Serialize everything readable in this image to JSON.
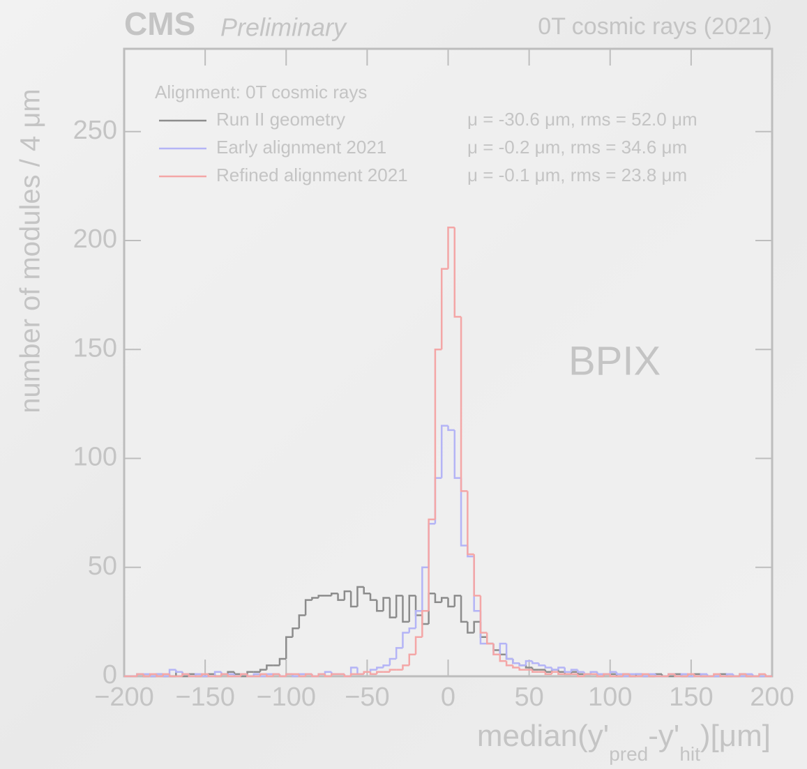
{
  "chart_data": {
    "type": "histogram",
    "experiment": "CMS",
    "status": "Preliminary",
    "run_label": "0T cosmic rays (2021)",
    "region_label": "BPIX",
    "legend_title": "Alignment: 0T cosmic rays",
    "ylabel": "number of modules / 4  μm",
    "xlabel_parts": [
      "median(y'",
      "pred",
      "-y'",
      "hit",
      ")[μm]"
    ],
    "xlim": [
      -200,
      200
    ],
    "ylim": [
      0,
      288
    ],
    "xticks": [
      {
        "value": -200,
        "label": "−200"
      },
      {
        "value": -150,
        "label": "−150"
      },
      {
        "value": -100,
        "label": "−100"
      },
      {
        "value": -50,
        "label": "−50"
      },
      0,
      50,
      100,
      150,
      200
    ],
    "yticks": [
      0,
      50,
      100,
      150,
      200,
      250
    ],
    "bins": [
      -200,
      -196,
      -192,
      -188,
      -184,
      -180,
      -176,
      -172,
      -168,
      -164,
      -160,
      -156,
      -152,
      -148,
      -144,
      -140,
      -136,
      -132,
      -128,
      -124,
      -120,
      -116,
      -112,
      -108,
      -104,
      -100,
      -96,
      -92,
      -88,
      -84,
      -80,
      -76,
      -72,
      -68,
      -64,
      -60,
      -56,
      -52,
      -48,
      -44,
      -40,
      -36,
      -32,
      -28,
      -24,
      -20,
      -16,
      -12,
      -8,
      -4,
      0,
      4,
      8,
      12,
      16,
      20,
      24,
      28,
      32,
      36,
      40,
      44,
      48,
      52,
      56,
      60,
      64,
      68,
      72,
      76,
      80,
      84,
      88,
      92,
      96,
      100,
      104,
      108,
      112,
      116,
      120,
      124,
      128,
      132,
      136,
      140,
      144,
      148,
      152,
      156,
      160,
      164,
      168,
      172,
      176,
      180,
      184,
      188,
      192,
      196,
      200
    ],
    "series": [
      {
        "name": "Run II geometry",
        "stats": "μ = -30.6 μm,  rms = 52.0 μm",
        "color": "#8c8c8c",
        "values": [
          0,
          0,
          1,
          0,
          0,
          1,
          0,
          0,
          2,
          0,
          1,
          0,
          0,
          1,
          0,
          1,
          2,
          1,
          0,
          2,
          2,
          3,
          5,
          5,
          8,
          18,
          22,
          28,
          35,
          36,
          37,
          37,
          38,
          35,
          39,
          32,
          41,
          38,
          35,
          30,
          36,
          27,
          37,
          25,
          37,
          28,
          24,
          38,
          34,
          36,
          32,
          37,
          25,
          20,
          25,
          18,
          15,
          12,
          10,
          8,
          6,
          5,
          4,
          3,
          3,
          2,
          3,
          2,
          1,
          2,
          1,
          1,
          2,
          0,
          1,
          1,
          0,
          1,
          0,
          1,
          0,
          0,
          1,
          0,
          0,
          1,
          0,
          0,
          1,
          0,
          0,
          0,
          1,
          0,
          0,
          1,
          0,
          0,
          0,
          0
        ]
      },
      {
        "name": "Early alignment 2021",
        "stats": "μ = -0.2 μm,  rms = 34.6 μm",
        "color": "#b4b4f6",
        "values": [
          0,
          0,
          1,
          1,
          0,
          1,
          0,
          3,
          2,
          1,
          0,
          1,
          0,
          0,
          2,
          1,
          1,
          0,
          1,
          0,
          1,
          0,
          1,
          1,
          0,
          1,
          0,
          1,
          1,
          0,
          1,
          2,
          1,
          1,
          0,
          4,
          1,
          2,
          3,
          4,
          5,
          8,
          13,
          20,
          22,
          30,
          50,
          70,
          91,
          115,
          113,
          91,
          60,
          55,
          30,
          15,
          15,
          10,
          15,
          8,
          6,
          5,
          7,
          6,
          5,
          4,
          3,
          4,
          2,
          3,
          2,
          1,
          2,
          1,
          1,
          2,
          1,
          0,
          1,
          1,
          0,
          1,
          0,
          0,
          1,
          0,
          1,
          0,
          0,
          1,
          0,
          0,
          0,
          1,
          0,
          0,
          1,
          0,
          0,
          0
        ]
      },
      {
        "name": "Refined alignment 2021",
        "stats": "μ = -0.1 μm,  rms = 23.8 μm",
        "color": "#f4a6a6",
        "values": [
          0,
          0,
          1,
          0,
          1,
          0,
          1,
          0,
          0,
          1,
          0,
          0,
          1,
          0,
          0,
          1,
          0,
          0,
          1,
          0,
          0,
          1,
          0,
          1,
          0,
          1,
          1,
          0,
          1,
          0,
          1,
          0,
          1,
          1,
          0,
          1,
          1,
          2,
          1,
          2,
          2,
          3,
          3,
          5,
          10,
          18,
          30,
          72,
          150,
          187,
          206,
          165,
          85,
          56,
          37,
          20,
          15,
          10,
          7,
          5,
          4,
          3,
          3,
          2,
          2,
          1,
          2,
          1,
          1,
          1,
          0,
          1,
          1,
          0,
          1,
          0,
          0,
          1,
          0,
          0,
          1,
          0,
          0,
          0,
          1,
          0,
          0,
          1,
          0,
          0,
          0,
          1,
          0,
          0,
          0,
          1,
          0,
          0,
          1,
          0
        ]
      }
    ]
  }
}
